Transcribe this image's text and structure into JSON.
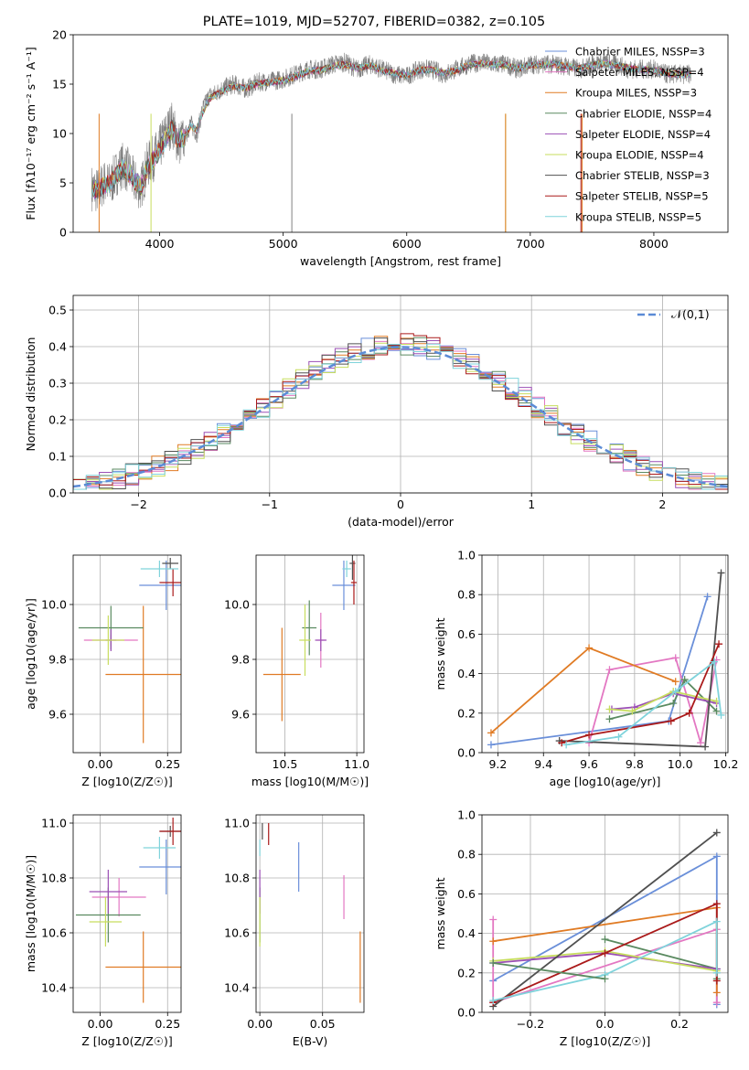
{
  "chart_data": [
    {
      "id": "spectrum",
      "type": "line",
      "title": "PLATE=1019, MJD=52707, FIBERID=0382, z=0.105",
      "xlabel": "wavelength [Angstrom, rest frame]",
      "ylabel": "Flux [fλ10⁻¹⁷ erg cm⁻² s⁻¹ A⁻¹]",
      "xlim": [
        3300,
        8600
      ],
      "ylim": [
        0,
        20
      ],
      "xticks": [
        4000,
        5000,
        6000,
        7000,
        8000
      ],
      "yticks": [
        0,
        5,
        10,
        15,
        20
      ],
      "grid": false,
      "legend_position": "upper-right",
      "data_spectrum": {
        "color": "#808080",
        "x": [
          3450,
          3500,
          3550,
          3600,
          3650,
          3700,
          3750,
          3800,
          3850,
          3900,
          3950,
          4000,
          4050,
          4100,
          4150,
          4200,
          4250,
          4300,
          4350,
          4400,
          4450,
          4500,
          4600,
          4700,
          4800,
          4900,
          5000,
          5100,
          5200,
          5300,
          5400,
          5500,
          5600,
          5700,
          5800,
          5900,
          6000,
          6100,
          6200,
          6300,
          6400,
          6500,
          6600,
          6700,
          6800,
          6900,
          7000,
          7100,
          7200,
          7300,
          7400,
          7500,
          7600,
          7700,
          7800,
          7900,
          8000,
          8100,
          8200,
          8300
        ],
        "values": [
          4.5,
          4.2,
          5.0,
          4.8,
          6.0,
          6.8,
          6.2,
          5.0,
          4.5,
          6.8,
          7.5,
          8.5,
          10.0,
          11.0,
          9.0,
          9.5,
          11.0,
          10.0,
          12.5,
          13.8,
          14.0,
          14.5,
          15.0,
          14.5,
          15.2,
          15.3,
          15.5,
          16.0,
          16.5,
          16.5,
          17.0,
          17.2,
          16.5,
          17.0,
          16.5,
          16.0,
          15.8,
          16.5,
          16.5,
          16.0,
          16.5,
          17.0,
          17.2,
          17.0,
          17.0,
          16.5,
          17.0,
          17.0,
          17.0,
          16.8,
          16.5,
          17.0,
          17.2,
          17.0,
          16.5,
          16.5,
          16.5,
          16.0,
          16.0,
          16.0
        ]
      },
      "series": [
        {
          "name": "Chabrier MILES, NSSP=3",
          "color": "#6a8fd9"
        },
        {
          "name": "Salpeter MILES, NSSP=4",
          "color": "#e377c2"
        },
        {
          "name": "Kroupa MILES, NSSP=3",
          "color": "#e07b24"
        },
        {
          "name": "Chabrier ELODIE, NSSP=4",
          "color": "#5a8a60"
        },
        {
          "name": "Salpeter ELODIE, NSSP=4",
          "color": "#9b4fb5"
        },
        {
          "name": "Kroupa ELODIE, NSSP=4",
          "color": "#c7dd5e"
        },
        {
          "name": "Chabrier STELIB, NSSP=3",
          "color": "#505050"
        },
        {
          "name": "Salpeter STELIB, NSSP=5",
          "color": "#aa1a1a"
        },
        {
          "name": "Kroupa STELIB, NSSP=5",
          "color": "#7fd3db"
        }
      ],
      "model_curve": {
        "x": [
          3450,
          3500,
          3550,
          3600,
          3650,
          3700,
          3750,
          3800,
          3850,
          3900,
          3950,
          4000,
          4050,
          4100,
          4150,
          4200,
          4250,
          4300,
          4350,
          4400,
          4450,
          4500,
          4600,
          4700,
          4800,
          4900,
          5000,
          5100,
          5200,
          5300,
          5400,
          5500,
          5600,
          5700,
          5800,
          5900,
          6000,
          6100,
          6200,
          6300,
          6400,
          6500,
          6600,
          6700,
          6800,
          6900,
          7000,
          7100,
          7200,
          7300,
          7400,
          7500,
          7600,
          7700,
          7800,
          7900,
          8000,
          8100,
          8200,
          8300
        ],
        "values": [
          4.4,
          4.3,
          4.8,
          4.9,
          5.8,
          6.5,
          6.0,
          5.2,
          4.6,
          6.5,
          7.3,
          8.4,
          9.5,
          10.5,
          9.3,
          9.6,
          10.8,
          10.3,
          12.2,
          13.5,
          13.9,
          14.3,
          14.8,
          14.6,
          15.1,
          15.2,
          15.4,
          15.8,
          16.3,
          16.4,
          16.8,
          17.0,
          16.6,
          16.9,
          16.4,
          16.1,
          15.9,
          16.4,
          16.5,
          16.1,
          16.4,
          16.9,
          17.1,
          17.0,
          16.9,
          16.6,
          16.9,
          17.0,
          17.0,
          16.8,
          16.6,
          16.9,
          17.1,
          16.9,
          16.6,
          16.5,
          16.4,
          16.1,
          16.0,
          16.0
        ]
      }
    },
    {
      "id": "residuals",
      "type": "histogram",
      "xlabel": "(data-model)/error",
      "ylabel": "Normed distribution",
      "xlim": [
        -2.5,
        2.5
      ],
      "ylim": [
        0,
        0.54
      ],
      "xticks": [
        -2,
        -1,
        0,
        1,
        2
      ],
      "yticks": [
        0.0,
        0.1,
        0.2,
        0.3,
        0.4,
        0.5
      ],
      "grid": true,
      "legend_position": "upper-right",
      "reference_curve": {
        "name": "𝒩(0,1)",
        "color": "#5b8bd6",
        "style": "dashed"
      },
      "bin_width": 0.1
    },
    {
      "id": "age-vs-Z",
      "type": "errorbar",
      "xlabel": "Z [log10(Z/Z☉)]",
      "ylabel": "age  [log10(age/yr)]",
      "xlim": [
        -0.1,
        0.3
      ],
      "ylim": [
        9.46,
        10.18
      ],
      "xticks": [
        0.0,
        0.25
      ],
      "yticks": [
        9.6,
        9.8,
        10.0
      ],
      "points": [
        {
          "color": "#6a8fd9",
          "x": 0.245,
          "y": 10.07,
          "xerr": 0.1,
          "yerr": 0.09
        },
        {
          "color": "#e377c2",
          "x": 0.04,
          "y": 9.87,
          "xerr": 0.1,
          "yerr": 0.02
        },
        {
          "color": "#e07b24",
          "x": 0.16,
          "y": 9.745,
          "xerr": 0.14,
          "yerr": 0.25
        },
        {
          "color": "#5a8a60",
          "x": 0.04,
          "y": 9.915,
          "xerr": 0.12,
          "yerr": 0.08
        },
        {
          "color": "#9b4fb5",
          "x": 0.04,
          "y": 9.87,
          "xerr": 0.02,
          "yerr": 0.04
        },
        {
          "color": "#c7dd5e",
          "x": 0.03,
          "y": 9.87,
          "xerr": 0.06,
          "yerr": 0.09
        },
        {
          "color": "#505050",
          "x": 0.26,
          "y": 10.15,
          "xerr": 0.03,
          "yerr": 0.02
        },
        {
          "color": "#aa1a1a",
          "x": 0.27,
          "y": 10.08,
          "xerr": 0.05,
          "yerr": 0.05
        },
        {
          "color": "#7fd3db",
          "x": 0.22,
          "y": 10.13,
          "xerr": 0.07,
          "yerr": 0.03
        }
      ]
    },
    {
      "id": "age-vs-mass",
      "type": "errorbar",
      "xlabel": "mass [log10(M/M☉)]",
      "xlim": [
        10.3,
        11.05
      ],
      "ylim": [
        9.46,
        10.18
      ],
      "xticks": [
        10.5,
        11.0
      ],
      "yticks": [
        9.6,
        9.8,
        10.0
      ],
      "points": [
        {
          "color": "#6a8fd9",
          "x": 10.91,
          "y": 10.07,
          "xerr": 0.08,
          "yerr": 0.09
        },
        {
          "color": "#e377c2",
          "x": 10.75,
          "y": 9.87,
          "xerr": 0.03,
          "yerr": 0.1
        },
        {
          "color": "#e07b24",
          "x": 10.48,
          "y": 9.745,
          "xerr": 0.13,
          "yerr": 0.17
        },
        {
          "color": "#5a8a60",
          "x": 10.67,
          "y": 9.915,
          "xerr": 0.05,
          "yerr": 0.1
        },
        {
          "color": "#9b4fb5",
          "x": 10.75,
          "y": 9.87,
          "xerr": 0.04,
          "yerr": 0.04
        },
        {
          "color": "#c7dd5e",
          "x": 10.64,
          "y": 9.87,
          "xerr": 0.04,
          "yerr": 0.13
        },
        {
          "color": "#505050",
          "x": 10.97,
          "y": 10.15,
          "xerr": 0.02,
          "yerr": 0.06
        },
        {
          "color": "#aa1a1a",
          "x": 10.98,
          "y": 10.08,
          "xerr": 0.02,
          "yerr": 0.08
        },
        {
          "color": "#7fd3db",
          "x": 10.93,
          "y": 10.13,
          "xerr": 0.03,
          "yerr": 0.03
        }
      ]
    },
    {
      "id": "massweight-vs-age",
      "type": "line",
      "xlabel": "age  [log10(age/yr)]",
      "ylabel": "mass weight",
      "xlim": [
        9.13,
        10.21
      ],
      "ylim": [
        0.0,
        1.0
      ],
      "xticks": [
        9.2,
        9.4,
        9.6,
        9.8,
        10.0,
        10.2
      ],
      "yticks": [
        0.0,
        0.2,
        0.4,
        0.6,
        0.8,
        1.0
      ],
      "grid": true,
      "series": [
        {
          "color": "#6a8fd9",
          "x": [
            9.17,
            9.95,
            10.12
          ],
          "y": [
            0.04,
            0.16,
            0.79
          ]
        },
        {
          "color": "#e377c2",
          "x": [
            9.6,
            9.69,
            9.98,
            10.09,
            10.16
          ],
          "y": [
            0.05,
            0.42,
            0.48,
            0.05,
            0.47
          ]
        },
        {
          "color": "#e07b24",
          "x": [
            9.17,
            9.6,
            9.98
          ],
          "y": [
            0.1,
            0.53,
            0.36
          ]
        },
        {
          "color": "#5a8a60",
          "x": [
            9.69,
            9.97,
            10.02,
            10.16
          ],
          "y": [
            0.17,
            0.25,
            0.37,
            0.21
          ]
        },
        {
          "color": "#9b4fb5",
          "x": [
            9.7,
            9.8,
            9.97,
            10.16
          ],
          "y": [
            0.22,
            0.23,
            0.3,
            0.25
          ]
        },
        {
          "color": "#c7dd5e",
          "x": [
            9.69,
            9.79,
            9.97,
            10.16
          ],
          "y": [
            0.22,
            0.21,
            0.31,
            0.26
          ]
        },
        {
          "color": "#505050",
          "x": [
            9.47,
            10.11,
            10.18
          ],
          "y": [
            0.06,
            0.03,
            0.91
          ]
        },
        {
          "color": "#aa1a1a",
          "x": [
            9.48,
            9.6,
            9.96,
            10.04,
            10.17
          ],
          "y": [
            0.05,
            0.09,
            0.16,
            0.2,
            0.55
          ]
        },
        {
          "color": "#7fd3db",
          "x": [
            9.5,
            9.73,
            9.98,
            10.15,
            10.18
          ],
          "y": [
            0.04,
            0.08,
            0.31,
            0.46,
            0.19
          ]
        }
      ]
    },
    {
      "id": "mass-vs-Z",
      "type": "errorbar",
      "xlabel": "Z [log10(Z/Z☉)]",
      "ylabel": "mass [log10(M/M☉)]",
      "xlim": [
        -0.1,
        0.3
      ],
      "ylim": [
        10.31,
        11.03
      ],
      "xticks": [
        0.0,
        0.25
      ],
      "yticks": [
        10.4,
        10.6,
        10.8,
        11.0
      ],
      "points": [
        {
          "color": "#6a8fd9",
          "x": 0.245,
          "y": 10.84,
          "xerr": 0.1,
          "yerr": 0.1
        },
        {
          "color": "#e377c2",
          "x": 0.07,
          "y": 10.73,
          "xerr": 0.1,
          "yerr": 0.07
        },
        {
          "color": "#e07b24",
          "x": 0.16,
          "y": 10.475,
          "xerr": 0.14,
          "yerr": 0.13
        },
        {
          "color": "#5a8a60",
          "x": 0.03,
          "y": 10.665,
          "xerr": 0.12,
          "yerr": 0.1
        },
        {
          "color": "#9b4fb5",
          "x": 0.03,
          "y": 10.75,
          "xerr": 0.07,
          "yerr": 0.08
        },
        {
          "color": "#c7dd5e",
          "x": 0.02,
          "y": 10.64,
          "xerr": 0.06,
          "yerr": 0.09
        },
        {
          "color": "#505050",
          "x": 0.26,
          "y": 10.97,
          "xerr": 0.04,
          "yerr": 0.02
        },
        {
          "color": "#aa1a1a",
          "x": 0.27,
          "y": 10.97,
          "xerr": 0.05,
          "yerr": 0.05
        },
        {
          "color": "#7fd3db",
          "x": 0.22,
          "y": 10.91,
          "xerr": 0.06,
          "yerr": 0.04
        }
      ]
    },
    {
      "id": "mass-vs-EBV",
      "type": "errorbar",
      "xlabel": "E(B-V)",
      "xlim": [
        -0.003,
        0.083
      ],
      "ylim": [
        10.31,
        11.03
      ],
      "xticks": [
        0.0,
        0.05
      ],
      "yticks": [
        10.4,
        10.6,
        10.8,
        11.0
      ],
      "points": [
        {
          "color": "#6a8fd9",
          "x": 0.031,
          "y": 10.84,
          "yerr": 0.09
        },
        {
          "color": "#e377c2",
          "x": 0.067,
          "y": 10.73,
          "yerr": 0.08
        },
        {
          "color": "#e07b24",
          "x": 0.08,
          "y": 10.475,
          "yerr": 0.13
        },
        {
          "color": "#5a8a60",
          "x": 0.0,
          "y": 10.665,
          "yerr": 0.1
        },
        {
          "color": "#9b4fb5",
          "x": 0.0,
          "y": 10.75,
          "yerr": 0.08
        },
        {
          "color": "#c7dd5e",
          "x": 0.0,
          "y": 10.64,
          "yerr": 0.09
        },
        {
          "color": "#505050",
          "x": 0.002,
          "y": 10.97,
          "yerr": 0.03
        },
        {
          "color": "#aa1a1a",
          "x": 0.007,
          "y": 10.96,
          "yerr": 0.04
        },
        {
          "color": "#7fd3db",
          "x": 0.0,
          "y": 10.91,
          "yerr": 0.03
        }
      ]
    },
    {
      "id": "massweight-vs-Z",
      "type": "line",
      "xlabel": "Z [log10(Z/Z☉)]",
      "ylabel": "mass weight",
      "xlim": [
        -0.33,
        0.33
      ],
      "ylim": [
        0.0,
        1.0
      ],
      "xticks": [
        -0.2,
        0.0,
        0.2
      ],
      "yticks": [
        0.0,
        0.2,
        0.4,
        0.6,
        0.8,
        1.0
      ],
      "grid": true,
      "series": [
        {
          "color": "#6a8fd9",
          "x": [
            -0.3,
            0.3,
            0.3
          ],
          "y": [
            0.16,
            0.79,
            0.04
          ]
        },
        {
          "color": "#e377c2",
          "x": [
            -0.3,
            -0.3,
            0.3,
            0.3
          ],
          "y": [
            0.47,
            0.05,
            0.42,
            0.05
          ]
        },
        {
          "color": "#e07b24",
          "x": [
            -0.3,
            0.3,
            0.3
          ],
          "y": [
            0.36,
            0.53,
            0.1
          ]
        },
        {
          "color": "#5a8a60",
          "x": [
            0.0,
            0.3,
            0.3
          ],
          "y": [
            0.37,
            0.22,
            0.17
          ]
        },
        {
          "color": "#9b4fb5",
          "x": [
            -0.3,
            0.0,
            0.3
          ],
          "y": [
            0.25,
            0.3,
            0.22
          ]
        },
        {
          "color": "#c7dd5e",
          "x": [
            -0.3,
            0.0,
            0.3
          ],
          "y": [
            0.26,
            0.31,
            0.21
          ]
        },
        {
          "color": "#505050",
          "x": [
            -0.3,
            0.3
          ],
          "y": [
            0.03,
            0.91
          ]
        },
        {
          "color": "#aa1a1a",
          "x": [
            -0.3,
            0.0,
            0.3,
            0.3
          ],
          "y": [
            0.05,
            0.3,
            0.55,
            0.16
          ]
        },
        {
          "color": "#7fd3db",
          "x": [
            -0.3,
            0.0,
            0.3,
            0.3
          ],
          "y": [
            0.06,
            0.19,
            0.46,
            0.2
          ]
        },
        {
          "color": "#5a8a60",
          "x": [
            -0.3,
            0.0
          ],
          "y": [
            0.25,
            0.17
          ]
        }
      ]
    }
  ]
}
